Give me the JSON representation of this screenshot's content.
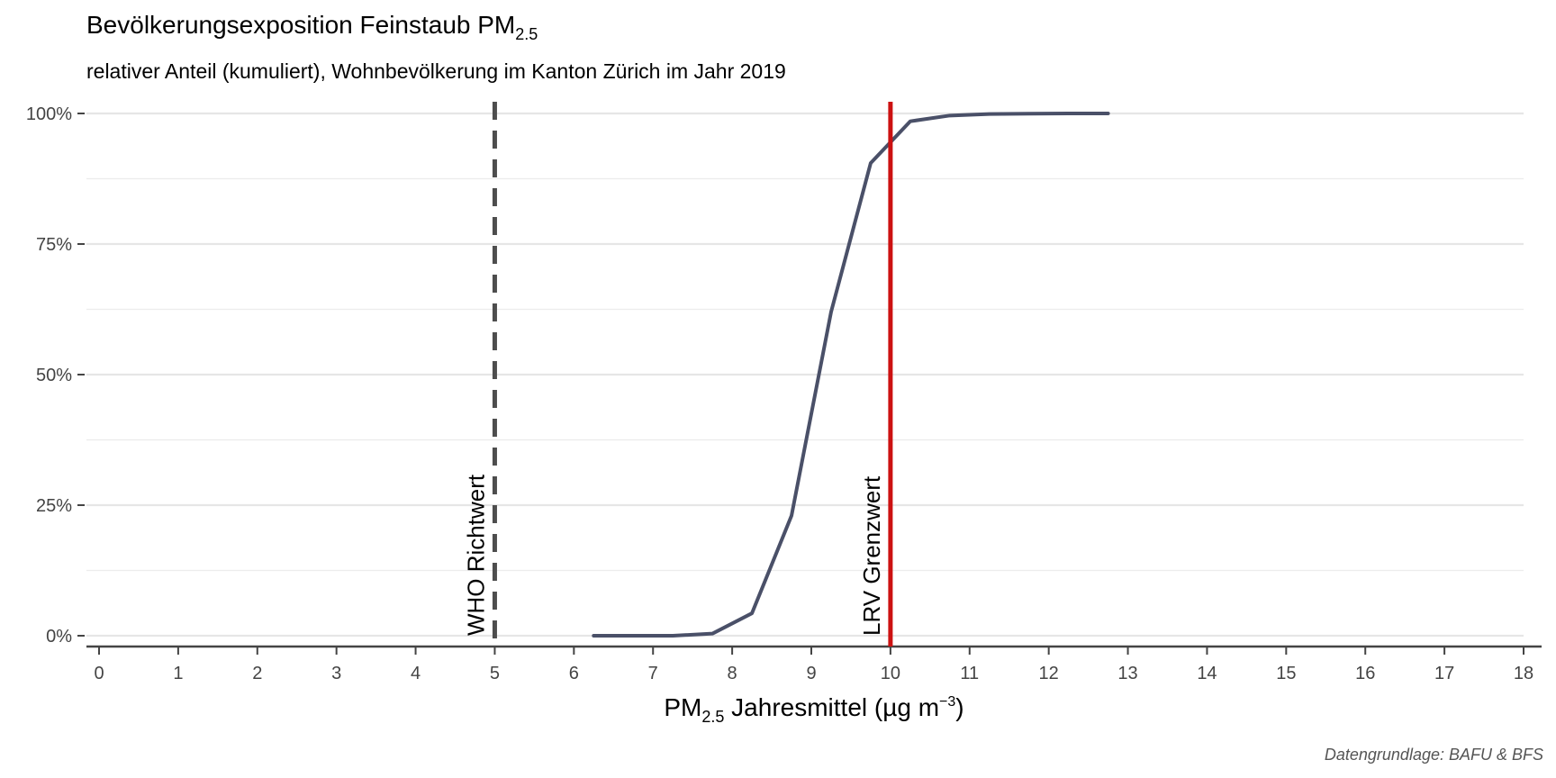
{
  "chart_data": {
    "type": "line",
    "title": "Bevölkerungsexposition Feinstaub PM",
    "title_subscript": "2.5",
    "subtitle": "relativer Anteil (kumuliert), Wohnbevölkerung im Kanton Zürich im Jahr 2019",
    "xlabel_prefix": "PM",
    "xlabel_subscript": "2.5",
    "xlabel_main": " Jahresmittel (µg m",
    "xlabel_superscript": "−3",
    "xlabel_suffix": ")",
    "caption": "Datengrundlage: BAFU & BFS",
    "xlim": [
      0,
      18
    ],
    "ylim": [
      0,
      1
    ],
    "x_ticks": [
      0,
      1,
      2,
      3,
      4,
      5,
      6,
      7,
      8,
      9,
      10,
      11,
      12,
      13,
      14,
      15,
      16,
      17,
      18
    ],
    "y_ticks": [
      {
        "value": 0,
        "label": "0%"
      },
      {
        "value": 0.25,
        "label": "25%"
      },
      {
        "value": 0.5,
        "label": "50%"
      },
      {
        "value": 0.75,
        "label": "75%"
      },
      {
        "value": 1,
        "label": "100%"
      }
    ],
    "grid": true,
    "series": [
      {
        "color": "#4a5068",
        "x": [
          6.25,
          6.75,
          7.25,
          7.75,
          8.25,
          8.75,
          9.25,
          9.75,
          10.25,
          10.75,
          11.25,
          11.75,
          12.25,
          12.75
        ],
        "y": [
          0.0,
          0.0,
          0.0,
          0.004,
          0.043,
          0.23,
          0.62,
          0.905,
          0.985,
          0.996,
          0.999,
          0.9995,
          1.0,
          1.0
        ]
      }
    ],
    "reference_lines": [
      {
        "x": 5,
        "label": "WHO Richtwert",
        "style": "dashed",
        "color": "#4d4d4d"
      },
      {
        "x": 10,
        "label": "LRV Grenzwert",
        "style": "solid",
        "color": "#cc1111"
      }
    ]
  }
}
